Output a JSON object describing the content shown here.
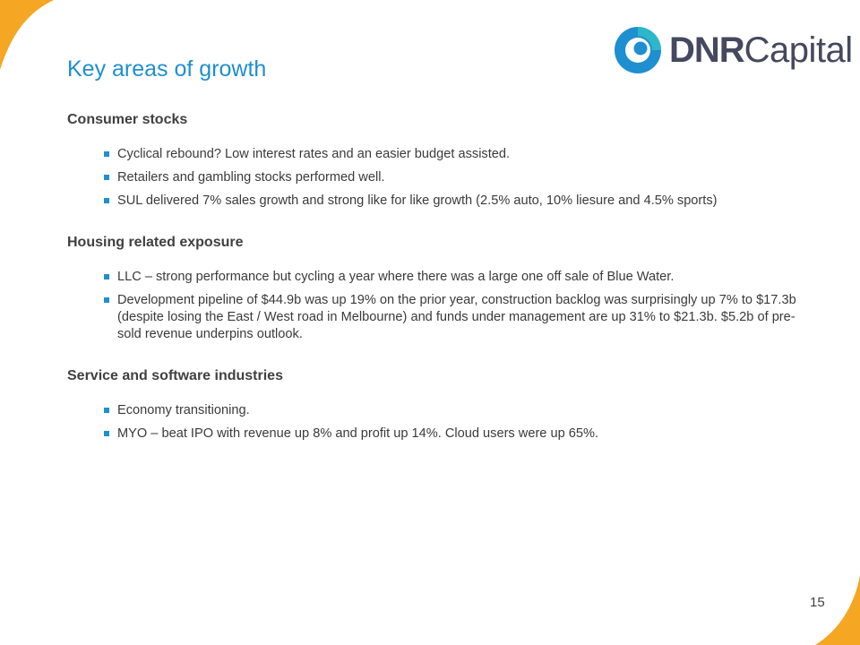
{
  "logo": {
    "text_bold": "DNR",
    "text_light": "Capital",
    "colors": {
      "blue": "#1e8fd0",
      "teal": "#2db8c9",
      "text": "#45485f"
    }
  },
  "title": "Key areas of growth",
  "sections": [
    {
      "heading": "Consumer stocks",
      "bullets": [
        "Cyclical rebound? Low interest rates and an easier budget assisted.",
        "Retailers and gambling stocks performed well.",
        "SUL delivered 7% sales growth and strong like for like growth (2.5% auto, 10% liesure and 4.5% sports)"
      ]
    },
    {
      "heading": "Housing related exposure",
      "bullets": [
        "LLC – strong performance but cycling a year where there was a large one off sale of Blue Water.",
        "Development pipeline of $44.9b was up 19% on the prior year, construction backlog was surprisingly up 7% to $17.3b (despite losing the East / West road in Melbourne) and funds under management are up 31% to $21.3b.   $5.2b of pre-sold revenue underpins outlook."
      ]
    },
    {
      "heading": "Service and software industries",
      "bullets": [
        "Economy transitioning.",
        "MYO – beat IPO with revenue up 8% and profit up 14%.  Cloud users were up 65%."
      ]
    }
  ],
  "page_number": "15",
  "colors": {
    "title": "#1e8fd0",
    "bullet": "#1e8fd0",
    "corner_accent": "#f5a623"
  }
}
